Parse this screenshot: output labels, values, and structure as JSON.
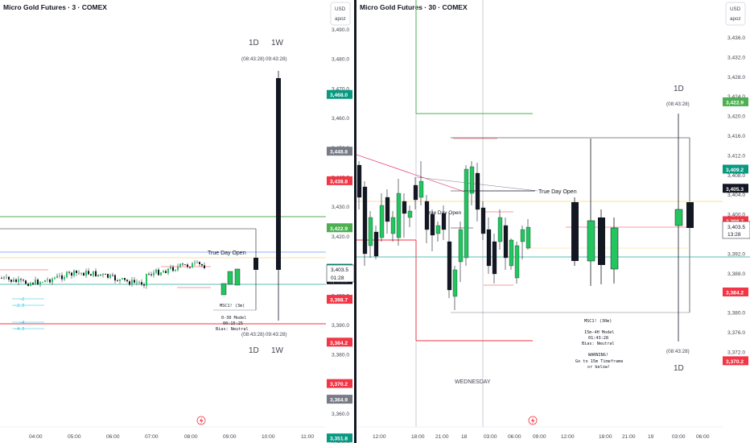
{
  "left": {
    "symbol": "Micro Gold Futures · 3 · COMEX",
    "currency": "USD",
    "currency_sub": "apoz",
    "true_day_open": "True Day Open",
    "session_info": [
      "MSC1! (3m)",
      "0-30 Model",
      "00:15:25",
      "Bias: Neutral"
    ],
    "tf_top": [
      "1D",
      "1W"
    ],
    "tf_bottom": [
      "1D",
      "1W"
    ],
    "timer_top": "(08:43:28)(08:43:28)",
    "timer_top_left": "(08:43:28)",
    "timer_top_right": "09:43:28)",
    "timer_bottom_left": "(08:43:28)",
    "timer_bottom_right": "09:43:28)",
    "fib_labels": [
      "-2",
      "-2.5",
      "-4",
      "-4.5"
    ],
    "yaxis": [
      "3,490.0",
      "3,480.0",
      "3,470.0",
      "3,460.0",
      "3,450.0",
      "3,440.0",
      "3,430.0",
      "3,420.0",
      "3,410.0",
      "3,400.0",
      "3,390.0",
      "3,380.0",
      "3,370.0",
      "3,360.0",
      "3,350.0"
    ],
    "xaxis": [
      "04:00",
      "05:00",
      "06:00",
      "07:00",
      "08:00",
      "09:00",
      "10:00",
      "11:00"
    ],
    "price_tags": [
      {
        "value": "3,468.0",
        "color": "#089981"
      },
      {
        "value": "3,448.8",
        "color": "#787b86"
      },
      {
        "value": "3,438.8",
        "color": "#f23645"
      },
      {
        "value": "3,422.9",
        "color": "#4caf50"
      },
      {
        "value": "3,409.2",
        "color": "#089981"
      },
      {
        "value": "3,405.3",
        "color": "#131722"
      },
      {
        "value": "3,398.7",
        "color": "#f23645"
      },
      {
        "value": "3,384.2",
        "color": "#f23645"
      },
      {
        "value": "3,370.2",
        "color": "#f23645"
      },
      {
        "value": "3,364.9",
        "color": "#787b86"
      },
      {
        "value": "3,351.8",
        "color": "#089981"
      }
    ],
    "current_price": "3,403.5",
    "countdown": "01:28"
  },
  "right": {
    "symbol": "Micro Gold Futures · 30 · COMEX",
    "currency": "USD",
    "currency_sub": "apoz",
    "true_day_open": "True Day Open",
    "true_day_open_2": "True Day Open",
    "session_info": [
      "MSC1! (30m)",
      "15m-4H Model",
      "01:43:28",
      "Bias: Neutral",
      "WARNING!",
      "Go to 15m Timeframe",
      "or below!"
    ],
    "tf_top": "1D",
    "tf_bottom": "1D",
    "timer_top": "(08:43:28)",
    "timer_bottom": "(08:43:28)",
    "weekday": "WEDNESDAY",
    "yaxis": [
      "3,436.0",
      "3,432.0",
      "3,428.0",
      "3,424.0",
      "3,420.0",
      "3,416.0",
      "3,412.0",
      "3,408.0",
      "3,404.0",
      "3,400.0",
      "3,396.0",
      "3,392.0",
      "3,388.0",
      "3,384.0",
      "3,380.0",
      "3,376.0",
      "3,372.0"
    ],
    "xaxis": [
      "12:00",
      "18:00",
      "21:00",
      "18",
      "03:00",
      "06:00",
      "09:00",
      "12:00",
      "18:00",
      "21:00",
      "19",
      "03:00",
      "06:00"
    ],
    "price_tags": [
      {
        "value": "3,422.9",
        "color": "#4caf50"
      },
      {
        "value": "3,409.2",
        "color": "#089981"
      },
      {
        "value": "3,405.3",
        "color": "#131722"
      },
      {
        "value": "3,398.7",
        "color": "#f23645"
      },
      {
        "value": "3,384.2",
        "color": "#f23645"
      },
      {
        "value": "3,370.2",
        "color": "#f23645"
      }
    ],
    "current_price": "3,403.5",
    "countdown": "13:28"
  }
}
